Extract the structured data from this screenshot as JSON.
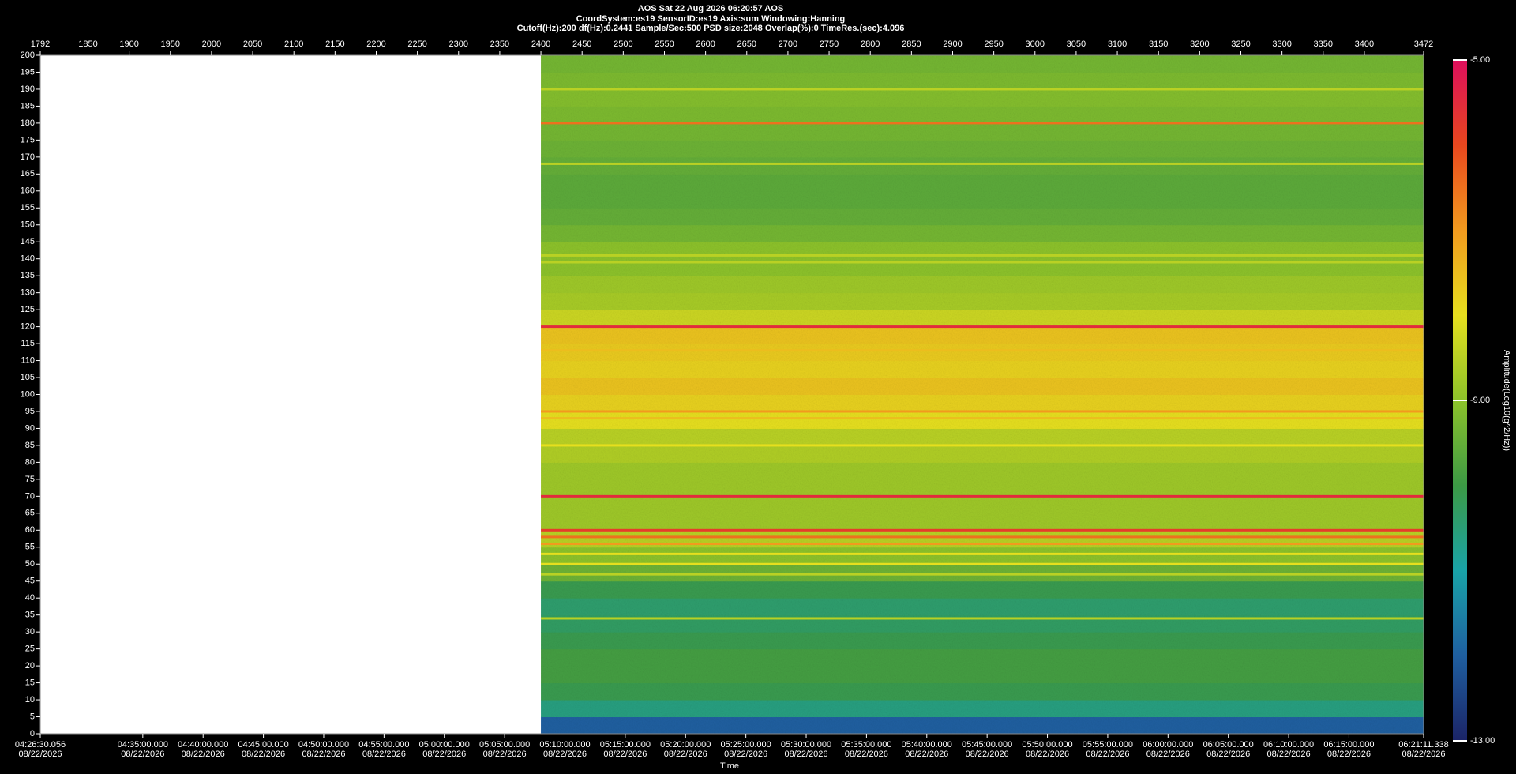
{
  "chart_data": {
    "type": "spectrogram",
    "title_lines": [
      "AOS  Sat 22 Aug 2026 06:20:57  AOS",
      "CoordSystem:es19   SensorID:es19    Axis:sum    Windowing:Hanning",
      "Cutoff(Hz):200       df(Hz):0.2441       Sample/Sec:500       PSD size:2048       Overlap(%):0       TimeRes.(sec):4.096"
    ],
    "x_label": "Time",
    "colorbar_label": "Amplitude(Log10(g^2/Hz))",
    "xlim": [
      1792,
      3472
    ],
    "xticks": [
      1792,
      1850,
      1900,
      1950,
      2000,
      2050,
      2100,
      2150,
      2200,
      2250,
      2300,
      2350,
      2400,
      2450,
      2500,
      2550,
      2600,
      2650,
      2700,
      2750,
      2800,
      2850,
      2900,
      2950,
      3000,
      3050,
      3100,
      3150,
      3200,
      3250,
      3300,
      3350,
      3400,
      3472
    ],
    "time_ticks": [
      {
        "value": 1792,
        "label": "04:26:30.056",
        "sublabel": "08/22/2026"
      },
      {
        "value": 1916.5,
        "label": "04:35:00.000",
        "sublabel": "08/22/2026"
      },
      {
        "value": 1989.74,
        "label": "04:40:00.000",
        "sublabel": "08/22/2026"
      },
      {
        "value": 2062.98,
        "label": "04:45:00.000",
        "sublabel": "08/22/2026"
      },
      {
        "value": 2136.22,
        "label": "04:50:00.000",
        "sublabel": "08/22/2026"
      },
      {
        "value": 2209.47,
        "label": "04:55:00.000",
        "sublabel": "08/22/2026"
      },
      {
        "value": 2282.71,
        "label": "05:00:00.000",
        "sublabel": "08/22/2026"
      },
      {
        "value": 2355.95,
        "label": "05:05:00.000",
        "sublabel": "08/22/2026"
      },
      {
        "value": 2429.19,
        "label": "05:10:00.000",
        "sublabel": "08/22/2026"
      },
      {
        "value": 2502.43,
        "label": "05:15:00.000",
        "sublabel": "08/22/2026"
      },
      {
        "value": 2575.68,
        "label": "05:20:00.000",
        "sublabel": "08/22/2026"
      },
      {
        "value": 2648.92,
        "label": "05:25:00.000",
        "sublabel": "08/22/2026"
      },
      {
        "value": 2722.16,
        "label": "05:30:00.000",
        "sublabel": "08/22/2026"
      },
      {
        "value": 2795.4,
        "label": "05:35:00.000",
        "sublabel": "08/22/2026"
      },
      {
        "value": 2868.64,
        "label": "05:40:00.000",
        "sublabel": "08/22/2026"
      },
      {
        "value": 2941.88,
        "label": "05:45:00.000",
        "sublabel": "08/22/2026"
      },
      {
        "value": 3015.13,
        "label": "05:50:00.000",
        "sublabel": "08/22/2026"
      },
      {
        "value": 3088.37,
        "label": "05:55:00.000",
        "sublabel": "08/22/2026"
      },
      {
        "value": 3161.61,
        "label": "06:00:00.000",
        "sublabel": "08/22/2026"
      },
      {
        "value": 3234.85,
        "label": "06:05:00.000",
        "sublabel": "08/22/2026"
      },
      {
        "value": 3308.09,
        "label": "06:10:00.000",
        "sublabel": "08/22/2026"
      },
      {
        "value": 3381.33,
        "label": "06:15:00.000",
        "sublabel": "08/22/2026"
      },
      {
        "value": 3472,
        "label": "06:21:11.338",
        "sublabel": "08/22/2026"
      }
    ],
    "ylim": [
      0,
      200
    ],
    "yticks": [
      0,
      5,
      10,
      15,
      20,
      25,
      30,
      35,
      40,
      45,
      50,
      55,
      60,
      65,
      70,
      75,
      80,
      85,
      90,
      95,
      100,
      105,
      110,
      115,
      120,
      125,
      130,
      135,
      140,
      145,
      150,
      155,
      160,
      165,
      170,
      175,
      180,
      185,
      190,
      195,
      200
    ],
    "zlim": [
      -13,
      -5
    ],
    "zticks": [
      {
        "value": -5,
        "label": "-5.00"
      },
      {
        "value": -9,
        "label": "-9.00"
      },
      {
        "value": -13,
        "label": "-13.00"
      }
    ],
    "colormap": [
      "#1b2466",
      "#1f5fa0",
      "#19a3a8",
      "#3c9a45",
      "#8cc22a",
      "#e6df1e",
      "#f29a1e",
      "#e8471e",
      "#dc0f5c"
    ],
    "data_xlim": [
      2400,
      3472
    ],
    "bands": {
      "edges": [
        0,
        5,
        10,
        15,
        20,
        25,
        30,
        35,
        40,
        45,
        50,
        55,
        60,
        65,
        70,
        75,
        80,
        85,
        90,
        95,
        100,
        105,
        110,
        115,
        120,
        125,
        130,
        135,
        140,
        145,
        150,
        155,
        160,
        165,
        170,
        175,
        180,
        185,
        190,
        195,
        200
      ],
      "values": [
        -12,
        -10.6,
        -10.1,
        -9.9,
        -9.9,
        -10.1,
        -10.3,
        -10.4,
        -10.1,
        -9.4,
        -9,
        -8.5,
        -8.8,
        -8.8,
        -8.8,
        -8.8,
        -8.6,
        -8.5,
        -8,
        -7.8,
        -7.6,
        -7.8,
        -7.7,
        -7.6,
        -8.3,
        -8.7,
        -8.8,
        -9,
        -9,
        -9.3,
        -9.5,
        -9.6,
        -9.6,
        -9.5,
        -9.4,
        -9.3,
        -9.2,
        -9.1,
        -9.2,
        -9.3
      ]
    },
    "tones": {
      "frequencies": [
        120,
        180,
        70,
        60,
        58,
        56,
        53,
        50,
        47,
        34,
        95,
        93,
        113,
        85,
        141,
        139,
        190,
        168
      ],
      "values": [
        -5.5,
        -6.5,
        -5.5,
        -5.8,
        -6.5,
        -7,
        -8,
        -8,
        -8.5,
        -8.5,
        -7,
        -7.5,
        -7.5,
        -8,
        -8.5,
        -8.5,
        -8.5,
        -8.5
      ]
    }
  }
}
